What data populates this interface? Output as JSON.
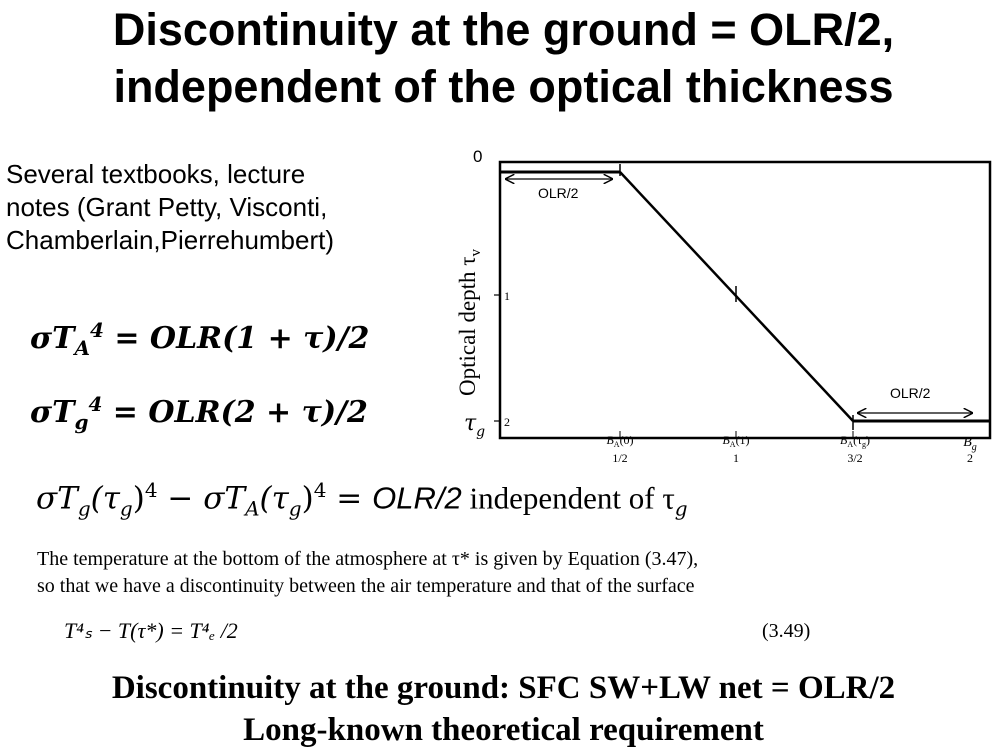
{
  "title": {
    "line1": "Discontinuity at the ground = OLR/2,",
    "line2": "independent of the optical thickness"
  },
  "intro": {
    "line1": "Several textbooks, lecture",
    "line2": "notes (Grant Petty, Visconti,",
    "line3": "Chamberlain,Pierrehumbert)"
  },
  "equations": {
    "ta": {
      "lhs": "σT",
      "sub": "A",
      "sup": "4",
      "rhs": " =  OLR(1 + τ)/2"
    },
    "tg": {
      "lhs": "σT",
      "sub": "g",
      "sup": "4",
      "rhs": " =  OLR(2 + τ)/2"
    }
  },
  "diagram": {
    "y_axis_label": "Optical depth τ",
    "y_axis_label_sub": "v",
    "y_tick_top": "0",
    "y_tick_mid": "1",
    "y_tick_bottom": "2",
    "tau_g": "τ",
    "tau_g_sub": "g",
    "olr_top": "OLR/2",
    "olr_bottom": "OLR/2",
    "x_ticks": [
      {
        "label": "B_A(0)",
        "value": "1/2"
      },
      {
        "label": "B_A(1)",
        "value": "1"
      },
      {
        "label": "B_A(τ_g)",
        "value": "3/2"
      },
      {
        "label": "B_g",
        "value": "2"
      }
    ]
  },
  "key_equation": {
    "part1": "σT",
    "part2": "(τ",
    "part3": ")",
    "part4": " − σT",
    "part5": "(τ",
    "part6": ")",
    "part7": " = ",
    "olr": "OLR/2",
    "tail": " independent of τ",
    "sub_g": "g",
    "sub_A": "A",
    "sup4": "4"
  },
  "book_excerpt": {
    "line1": "The temperature at the bottom of the atmosphere at τ* is given by Equation (3.47),",
    "line2": "so that we have a discontinuity between the air temperature and that of the surface",
    "equation": "T⁴ₛ − T(τ*) = T⁴ₑ /2",
    "equation_number": "(3.49)"
  },
  "footer": {
    "line1": "Discontinuity at the ground:  SFC SW+LW net = OLR/2",
    "line2": "Long-known theoretical requirement"
  }
}
